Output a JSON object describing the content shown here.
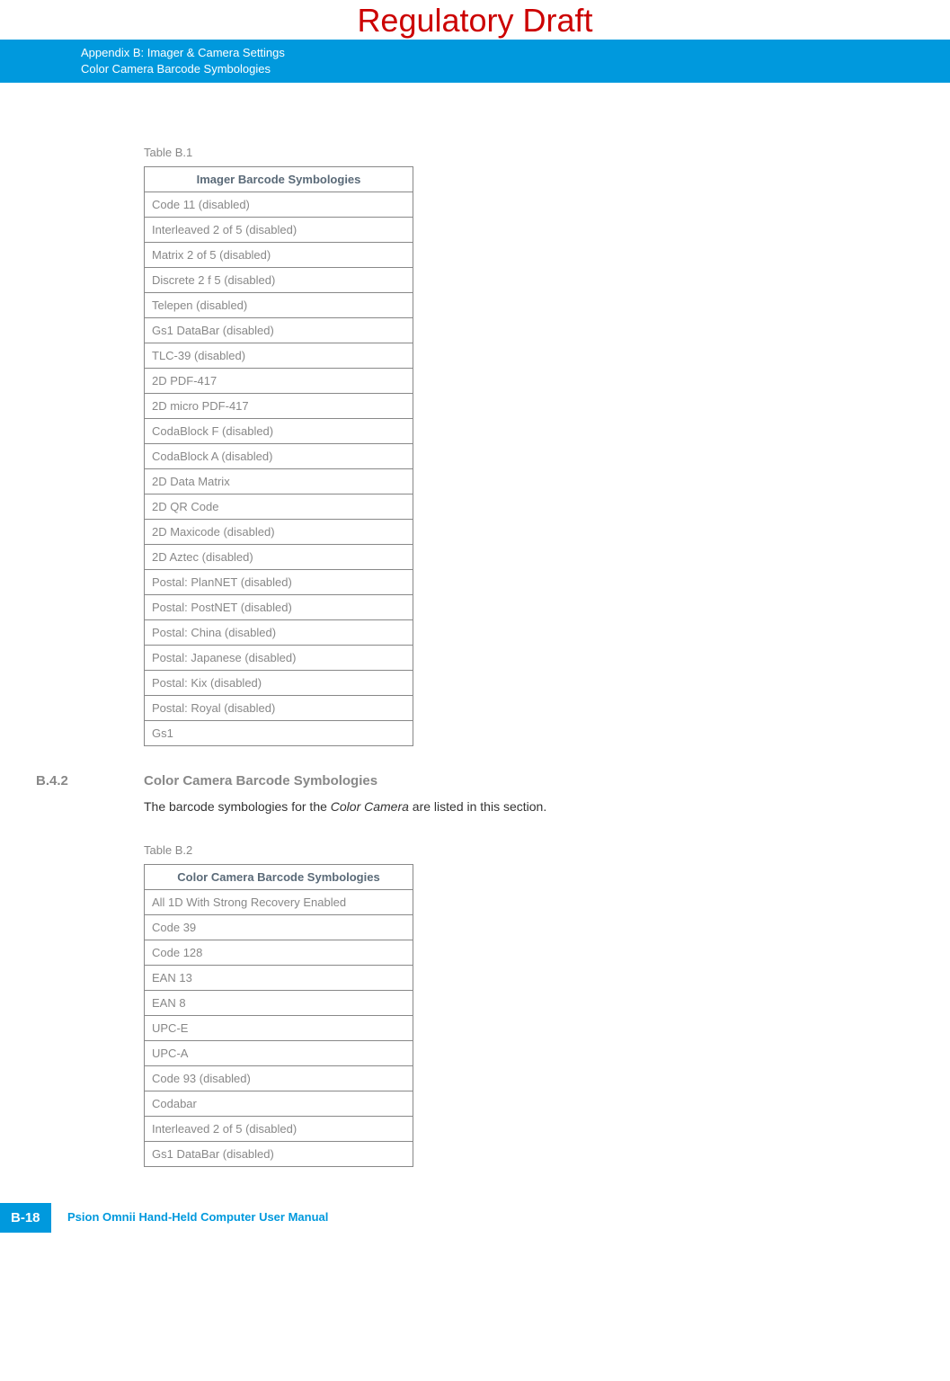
{
  "draft_banner": "Regulatory Draft",
  "header": {
    "line1": "Appendix B: Imager & Camera Settings",
    "line2": "Color Camera Barcode Symbologies"
  },
  "table1": {
    "caption": "Table B.1",
    "header": "Imager Barcode Symbologies",
    "rows": [
      "Code 11 (disabled)",
      "Interleaved 2 of 5 (disabled)",
      "Matrix 2 of 5 (disabled)",
      "Discrete 2 f 5 (disabled)",
      "Telepen (disabled)",
      "Gs1 DataBar (disabled)",
      "TLC-39 (disabled)",
      "2D PDF-417",
      "2D micro PDF-417",
      "CodaBlock F (disabled)",
      "CodaBlock A (disabled)",
      "2D Data Matrix",
      "2D QR Code",
      "2D Maxicode (disabled)",
      "2D Aztec (disabled)",
      "Postal: PlanNET (disabled)",
      "Postal: PostNET (disabled)",
      "Postal: China (disabled)",
      "Postal: Japanese (disabled)",
      "Postal: Kix (disabled)",
      "Postal: Royal (disabled)",
      "Gs1"
    ]
  },
  "section": {
    "number": "B.4.2",
    "title": "Color Camera Barcode Symbologies",
    "body_prefix": "The barcode symbologies for the ",
    "body_em": "Color Camera",
    "body_suffix": " are listed in this section."
  },
  "table2": {
    "caption": "Table B.2",
    "header": "Color Camera Barcode Symbologies",
    "rows": [
      "All 1D With Strong Recovery Enabled",
      "Code 39",
      "Code 128",
      "EAN 13",
      "EAN 8",
      "UPC-E",
      "UPC-A",
      "Code 93 (disabled)",
      "Codabar",
      "Interleaved 2 of 5 (disabled)",
      "Gs1 DataBar (disabled)"
    ]
  },
  "footer": {
    "page": "B-18",
    "text": "Psion Omnii Hand-Held Computer User Manual"
  }
}
